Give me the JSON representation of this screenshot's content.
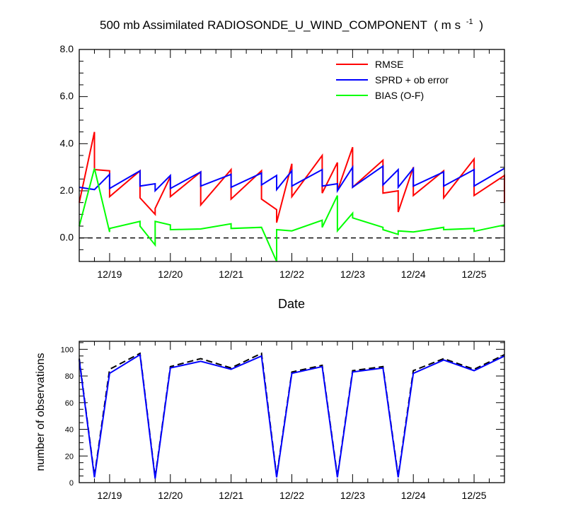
{
  "title": "500 mb Assimilated RADIOSONDE_U_WIND_COMPONENT",
  "title_units": "( m s",
  "title_units_sup": "-1",
  "title_units_close": ")",
  "colors": {
    "rmse": "#ff0000",
    "sprd": "#0000ff",
    "bias": "#00ff00",
    "obs_total": "#000000",
    "obs_used": "#0000ff",
    "zero_line": "#000000"
  },
  "chart_data": [
    {
      "type": "line",
      "xlabel": "Date",
      "ylabel": "",
      "xlim": [
        "12/18 12:00",
        "12/25 12:00"
      ],
      "ylim": [
        -1.0,
        8.0
      ],
      "y_ticks": [
        "0.0",
        "2.0",
        "4.0",
        "6.0",
        "8.0"
      ],
      "x_ticks": [
        "12/19",
        "12/20",
        "12/21",
        "12/22",
        "12/23",
        "12/24",
        "12/25"
      ],
      "reference_line": {
        "y": 0.0,
        "style": "dashed"
      },
      "legend_position": "top-right",
      "series": [
        {
          "name": "RMSE",
          "color": "#ff0000",
          "points": [
            [
              "12/18 12:00",
              1.5
            ],
            [
              "12/18 18:00",
              4.5
            ],
            [
              "12/18 18:00",
              2.9
            ],
            [
              "12/19 00:00",
              2.85
            ],
            [
              "12/19 00:00",
              1.75
            ],
            [
              "12/19 12:00",
              2.85
            ],
            [
              "12/19 12:00",
              1.7
            ],
            [
              "12/19 18:00",
              1.0
            ],
            [
              "12/19 18:00",
              1.25
            ],
            [
              "12/20 00:00",
              2.6
            ],
            [
              "12/20 00:00",
              1.75
            ],
            [
              "12/20 12:00",
              2.8
            ],
            [
              "12/20 12:00",
              1.4
            ],
            [
              "12/21 00:00",
              2.9
            ],
            [
              "12/21 00:00",
              1.65
            ],
            [
              "12/21 12:00",
              2.85
            ],
            [
              "12/21 12:00",
              1.65
            ],
            [
              "12/21 18:00",
              1.2
            ],
            [
              "12/21 18:00",
              0.65
            ],
            [
              "12/22 00:00",
              3.15
            ],
            [
              "12/22 00:00",
              1.75
            ],
            [
              "12/22 12:00",
              3.5
            ],
            [
              "12/22 12:00",
              1.9
            ],
            [
              "12/22 18:00",
              3.2
            ],
            [
              "12/22 18:00",
              2.0
            ],
            [
              "12/23 00:00",
              3.85
            ],
            [
              "12/23 00:00",
              2.15
            ],
            [
              "12/23 12:00",
              3.3
            ],
            [
              "12/23 12:00",
              1.9
            ],
            [
              "12/23 18:00",
              2.0
            ],
            [
              "12/23 18:00",
              1.1
            ],
            [
              "12/24 00:00",
              3.0
            ],
            [
              "12/24 00:00",
              1.8
            ],
            [
              "12/24 12:00",
              2.85
            ],
            [
              "12/24 12:00",
              1.7
            ],
            [
              "12/25 00:00",
              3.35
            ],
            [
              "12/25 00:00",
              1.8
            ],
            [
              "12/25 12:00",
              2.65
            ],
            [
              "12/25 12:00",
              1.5
            ]
          ]
        },
        {
          "name": "SPRD + ob error",
          "color": "#0000ff",
          "points": [
            [
              "12/18 12:00",
              2.15
            ],
            [
              "12/18 18:00",
              2.05
            ],
            [
              "12/19 00:00",
              2.7
            ],
            [
              "12/19 00:00",
              2.1
            ],
            [
              "12/19 12:00",
              2.85
            ],
            [
              "12/19 12:00",
              2.2
            ],
            [
              "12/19 18:00",
              2.3
            ],
            [
              "12/19 18:00",
              2.0
            ],
            [
              "12/20 00:00",
              2.65
            ],
            [
              "12/20 00:00",
              2.1
            ],
            [
              "12/20 12:00",
              2.8
            ],
            [
              "12/20 12:00",
              2.2
            ],
            [
              "12/21 00:00",
              2.7
            ],
            [
              "12/21 00:00",
              2.15
            ],
            [
              "12/21 12:00",
              2.75
            ],
            [
              "12/21 12:00",
              2.25
            ],
            [
              "12/21 18:00",
              2.65
            ],
            [
              "12/21 18:00",
              2.05
            ],
            [
              "12/22 00:00",
              2.85
            ],
            [
              "12/22 00:00",
              2.2
            ],
            [
              "12/22 12:00",
              2.9
            ],
            [
              "12/22 12:00",
              2.2
            ],
            [
              "12/22 18:00",
              2.3
            ],
            [
              "12/22 18:00",
              2.0
            ],
            [
              "12/23 00:00",
              3.0
            ],
            [
              "12/23 00:00",
              2.15
            ],
            [
              "12/23 12:00",
              3.05
            ],
            [
              "12/23 12:00",
              2.25
            ],
            [
              "12/23 18:00",
              2.9
            ],
            [
              "12/23 18:00",
              2.15
            ],
            [
              "12/24 00:00",
              2.95
            ],
            [
              "12/24 00:00",
              2.2
            ],
            [
              "12/24 12:00",
              2.8
            ],
            [
              "12/24 12:00",
              2.2
            ],
            [
              "12/25 00:00",
              2.9
            ],
            [
              "12/25 00:00",
              2.2
            ],
            [
              "12/25 12:00",
              2.95
            ]
          ]
        },
        {
          "name": "BIAS (O-F)",
          "color": "#00ff00",
          "points": [
            [
              "12/18 12:00",
              0.5
            ],
            [
              "12/18 18:00",
              2.95
            ],
            [
              "12/19 00:00",
              0.25
            ],
            [
              "12/19 00:00",
              0.4
            ],
            [
              "12/19 12:00",
              0.7
            ],
            [
              "12/19 12:00",
              0.5
            ],
            [
              "12/19 18:00",
              -0.3
            ],
            [
              "12/19 18:00",
              0.7
            ],
            [
              "12/20 00:00",
              0.55
            ],
            [
              "12/20 00:00",
              0.35
            ],
            [
              "12/20 12:00",
              0.38
            ],
            [
              "12/21 00:00",
              0.6
            ],
            [
              "12/21 00:00",
              0.4
            ],
            [
              "12/21 12:00",
              0.45
            ],
            [
              "12/21 18:00",
              -1.0
            ],
            [
              "12/21 18:00",
              0.35
            ],
            [
              "12/22 00:00",
              0.3
            ],
            [
              "12/22 12:00",
              0.75
            ],
            [
              "12/22 12:00",
              0.45
            ],
            [
              "12/22 18:00",
              1.8
            ],
            [
              "12/22 18:00",
              0.3
            ],
            [
              "12/23 00:00",
              1.05
            ],
            [
              "12/23 00:00",
              0.85
            ],
            [
              "12/23 12:00",
              0.45
            ],
            [
              "12/23 12:00",
              0.35
            ],
            [
              "12/23 18:00",
              0.15
            ],
            [
              "12/23 18:00",
              0.3
            ],
            [
              "12/24 00:00",
              0.25
            ],
            [
              "12/24 12:00",
              0.45
            ],
            [
              "12/24 12:00",
              0.35
            ],
            [
              "12/25 00:00",
              0.4
            ],
            [
              "12/25 00:00",
              0.28
            ],
            [
              "12/25 12:00",
              0.55
            ]
          ]
        }
      ]
    },
    {
      "type": "line",
      "xlabel": "",
      "ylabel": "number of observations",
      "xlim": [
        "12/18 12:00",
        "12/25 12:00"
      ],
      "ylim": [
        0,
        106
      ],
      "y_ticks": [
        "0",
        "20",
        "40",
        "60",
        "80",
        "100"
      ],
      "x_ticks": [
        "12/19",
        "12/20",
        "12/21",
        "12/22",
        "12/23",
        "12/24",
        "12/25"
      ],
      "series": [
        {
          "color": "#000000",
          "style": "dashed",
          "points": [
            [
              "12/18 12:00",
              93
            ],
            [
              "12/18 18:00",
              5
            ],
            [
              "12/19 00:00",
              85
            ],
            [
              "12/19 12:00",
              97
            ],
            [
              "12/19 18:00",
              4
            ],
            [
              "12/20 00:00",
              87
            ],
            [
              "12/20 12:00",
              93
            ],
            [
              "12/21 00:00",
              86
            ],
            [
              "12/21 12:00",
              97
            ],
            [
              "12/21 18:00",
              5
            ],
            [
              "12/22 00:00",
              83
            ],
            [
              "12/22 12:00",
              88
            ],
            [
              "12/22 18:00",
              5
            ],
            [
              "12/23 00:00",
              84
            ],
            [
              "12/23 12:00",
              87
            ],
            [
              "12/23 18:00",
              5
            ],
            [
              "12/24 00:00",
              84
            ],
            [
              "12/24 12:00",
              93
            ],
            [
              "12/25 00:00",
              85
            ],
            [
              "12/25 12:00",
              96
            ]
          ]
        },
        {
          "color": "#0000ff",
          "style": "solid",
          "points": [
            [
              "12/18 12:00",
              92
            ],
            [
              "12/18 18:00",
              4
            ],
            [
              "12/19 00:00",
              82
            ],
            [
              "12/19 12:00",
              96
            ],
            [
              "12/19 18:00",
              3
            ],
            [
              "12/20 00:00",
              86
            ],
            [
              "12/20 12:00",
              91
            ],
            [
              "12/21 00:00",
              85
            ],
            [
              "12/21 12:00",
              95
            ],
            [
              "12/21 18:00",
              4
            ],
            [
              "12/22 00:00",
              82
            ],
            [
              "12/22 12:00",
              87
            ],
            [
              "12/22 18:00",
              4
            ],
            [
              "12/23 00:00",
              83
            ],
            [
              "12/23 12:00",
              86
            ],
            [
              "12/23 18:00",
              4
            ],
            [
              "12/24 00:00",
              82
            ],
            [
              "12/24 12:00",
              92
            ],
            [
              "12/25 00:00",
              84
            ],
            [
              "12/25 12:00",
              95
            ]
          ]
        }
      ]
    }
  ]
}
